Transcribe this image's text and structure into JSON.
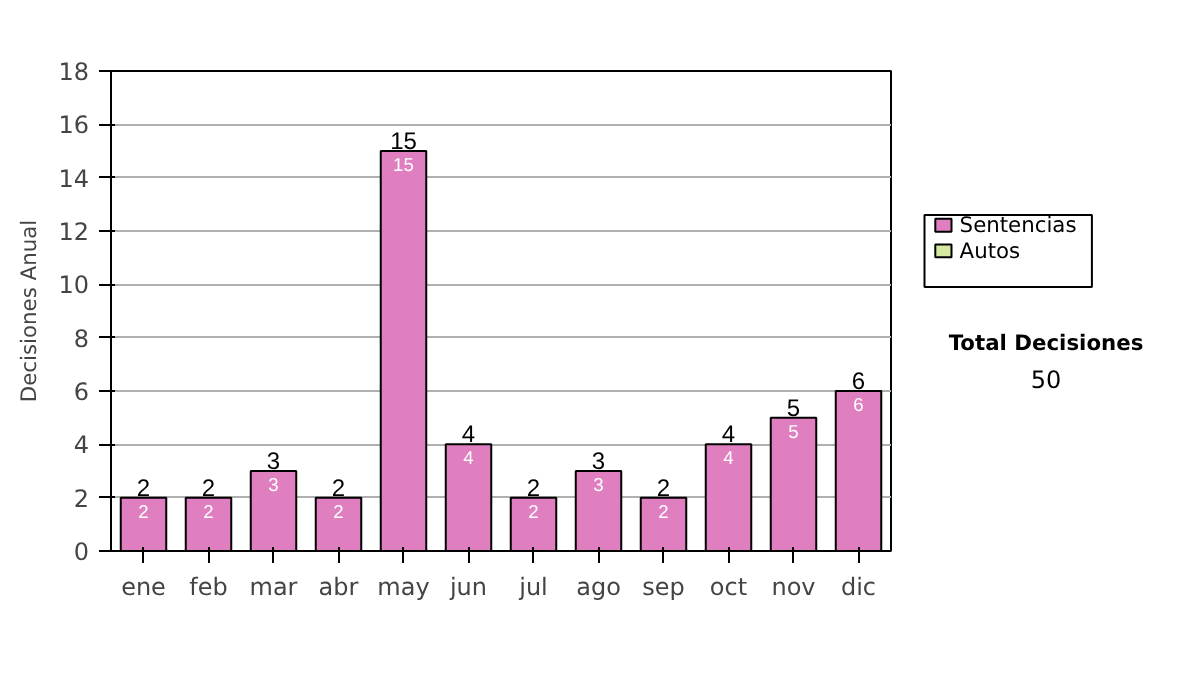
{
  "chart_data": {
    "type": "bar",
    "stacked": true,
    "ylabel": "Decisiones Anual",
    "categories": [
      "ene",
      "feb",
      "mar",
      "abr",
      "may",
      "jun",
      "jul",
      "ago",
      "sep",
      "oct",
      "nov",
      "dic"
    ],
    "series": [
      {
        "name": "Sentencias",
        "color": "#df7fc0",
        "values": [
          2,
          2,
          3,
          2,
          15,
          4,
          2,
          3,
          2,
          4,
          5,
          6
        ],
        "value_labels": [
          "2",
          "2",
          "3",
          "2",
          "15",
          "4",
          "2",
          "3",
          "2",
          "4",
          "5",
          "6"
        ]
      },
      {
        "name": "Autos",
        "color": "#d4eaa0",
        "values": [
          null,
          null,
          null,
          null,
          null,
          null,
          null,
          null,
          null,
          null,
          null,
          null
        ]
      }
    ],
    "totals": [
      "2",
      "2",
      "3",
      "2",
      "15",
      "4",
      "2",
      "3",
      "2",
      "4",
      "5",
      "6"
    ],
    "ylim": [
      0,
      18
    ],
    "yticks": [
      0,
      2,
      4,
      6,
      8,
      10,
      12,
      14,
      16,
      18
    ],
    "grid": "y",
    "legend": "right",
    "annotations": [
      "Total Decisiones",
      "50"
    ]
  }
}
